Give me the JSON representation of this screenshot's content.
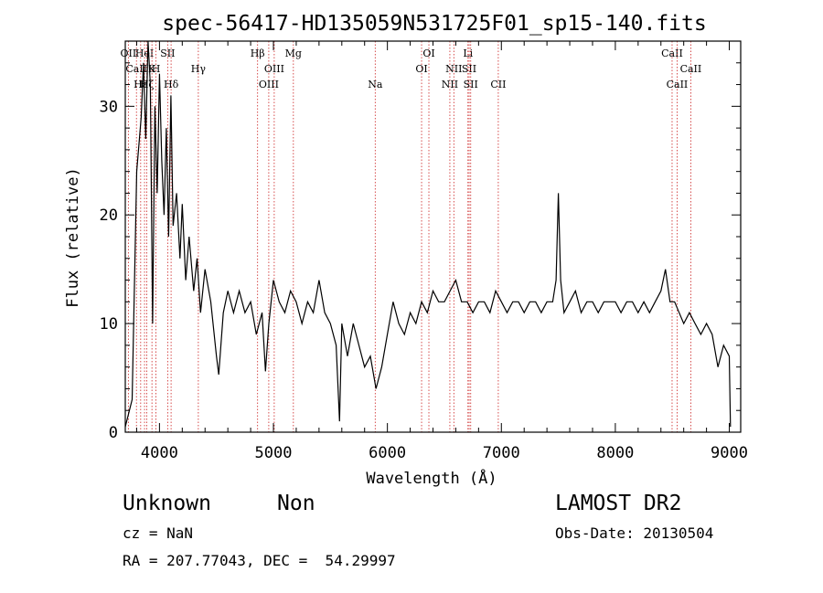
{
  "chart_data": {
    "type": "line",
    "title": "spec-56417-HD135059N531725F01_sp15-140.fits",
    "xlabel": "Wavelength (Å)",
    "ylabel": "Flux (relative)",
    "xlim": [
      3700,
      9100
    ],
    "ylim": [
      0,
      36
    ],
    "xticks": [
      4000,
      5000,
      6000,
      7000,
      8000,
      9000
    ],
    "yticks": [
      0,
      10,
      20,
      30
    ],
    "grid": false,
    "series": [
      {
        "values": [
          [
            3700,
            0.5
          ],
          [
            3760,
            3
          ],
          [
            3800,
            24
          ],
          [
            3840,
            29
          ],
          [
            3860,
            34
          ],
          [
            3880,
            27
          ],
          [
            3900,
            36
          ],
          [
            3920,
            32
          ],
          [
            3940,
            10
          ],
          [
            3960,
            30
          ],
          [
            3980,
            22
          ],
          [
            4000,
            33
          ],
          [
            4020,
            25
          ],
          [
            4040,
            20
          ],
          [
            4060,
            28
          ],
          [
            4080,
            18
          ],
          [
            4100,
            31
          ],
          [
            4120,
            19
          ],
          [
            4150,
            22
          ],
          [
            4180,
            16
          ],
          [
            4200,
            21
          ],
          [
            4230,
            14
          ],
          [
            4260,
            18
          ],
          [
            4300,
            13
          ],
          [
            4330,
            16
          ],
          [
            4360,
            11
          ],
          [
            4400,
            15
          ],
          [
            4450,
            12
          ],
          [
            4500,
            7
          ],
          [
            4520,
            5.3
          ],
          [
            4560,
            11
          ],
          [
            4600,
            13
          ],
          [
            4650,
            11
          ],
          [
            4700,
            13
          ],
          [
            4750,
            11
          ],
          [
            4800,
            12
          ],
          [
            4850,
            9
          ],
          [
            4900,
            11
          ],
          [
            4930,
            5.6
          ],
          [
            4960,
            10
          ],
          [
            5000,
            14
          ],
          [
            5050,
            12
          ],
          [
            5100,
            11
          ],
          [
            5150,
            13
          ],
          [
            5200,
            12
          ],
          [
            5250,
            10
          ],
          [
            5300,
            12
          ],
          [
            5350,
            11
          ],
          [
            5400,
            14
          ],
          [
            5450,
            11
          ],
          [
            5500,
            10
          ],
          [
            5550,
            8
          ],
          [
            5580,
            1
          ],
          [
            5600,
            10
          ],
          [
            5650,
            7
          ],
          [
            5700,
            10
          ],
          [
            5750,
            8
          ],
          [
            5800,
            6
          ],
          [
            5850,
            7
          ],
          [
            5900,
            4
          ],
          [
            5950,
            6
          ],
          [
            6000,
            9
          ],
          [
            6050,
            12
          ],
          [
            6100,
            10
          ],
          [
            6150,
            9
          ],
          [
            6200,
            11
          ],
          [
            6250,
            10
          ],
          [
            6300,
            12
          ],
          [
            6350,
            11
          ],
          [
            6400,
            13
          ],
          [
            6450,
            12
          ],
          [
            6500,
            12
          ],
          [
            6550,
            13
          ],
          [
            6600,
            14
          ],
          [
            6650,
            12
          ],
          [
            6700,
            12
          ],
          [
            6750,
            11
          ],
          [
            6800,
            12
          ],
          [
            6850,
            12
          ],
          [
            6900,
            11
          ],
          [
            6950,
            13
          ],
          [
            7000,
            12
          ],
          [
            7050,
            11
          ],
          [
            7100,
            12
          ],
          [
            7150,
            12
          ],
          [
            7200,
            11
          ],
          [
            7250,
            12
          ],
          [
            7300,
            12
          ],
          [
            7350,
            11
          ],
          [
            7400,
            12
          ],
          [
            7450,
            12
          ],
          [
            7480,
            14
          ],
          [
            7500,
            22
          ],
          [
            7520,
            14
          ],
          [
            7550,
            11
          ],
          [
            7600,
            12
          ],
          [
            7650,
            13
          ],
          [
            7700,
            11
          ],
          [
            7750,
            12
          ],
          [
            7800,
            12
          ],
          [
            7850,
            11
          ],
          [
            7900,
            12
          ],
          [
            7950,
            12
          ],
          [
            8000,
            12
          ],
          [
            8050,
            11
          ],
          [
            8100,
            12
          ],
          [
            8150,
            12
          ],
          [
            8200,
            11
          ],
          [
            8250,
            12
          ],
          [
            8300,
            11
          ],
          [
            8350,
            12
          ],
          [
            8400,
            13
          ],
          [
            8440,
            15
          ],
          [
            8480,
            12
          ],
          [
            8520,
            12
          ],
          [
            8560,
            11
          ],
          [
            8600,
            10
          ],
          [
            8650,
            11
          ],
          [
            8700,
            10
          ],
          [
            8750,
            9
          ],
          [
            8800,
            10
          ],
          [
            8850,
            9
          ],
          [
            8900,
            6
          ],
          [
            8950,
            8
          ],
          [
            9000,
            7
          ],
          [
            9010,
            0.5
          ]
        ]
      }
    ],
    "line_markers": [
      {
        "x": 3727,
        "labels": [
          "OII"
        ],
        "row": 1
      },
      {
        "x": 3798,
        "labels": [
          "CaII"
        ],
        "row": 2
      },
      {
        "x": 3835,
        "labels": [
          "Hε"
        ],
        "row": 3
      },
      {
        "x": 3869,
        "labels": [
          "HeI"
        ],
        "row": 1
      },
      {
        "x": 3889,
        "labels": [
          "Hζ"
        ],
        "row": 3
      },
      {
        "x": 3934,
        "labels": [
          "K"
        ],
        "row": 2
      },
      {
        "x": 3969,
        "labels": [
          "H"
        ],
        "row": 2
      },
      {
        "x": 4072,
        "labels": [
          "SII"
        ],
        "row": 1
      },
      {
        "x": 4102,
        "labels": [
          "Hδ"
        ],
        "row": 3
      },
      {
        "x": 4341,
        "labels": [
          "Hγ"
        ],
        "row": 2
      },
      {
        "x": 4861,
        "labels": [
          "Hβ"
        ],
        "row": 1
      },
      {
        "x": 4959,
        "labels": [
          "OIII"
        ],
        "row": 3
      },
      {
        "x": 5007,
        "labels": [
          "OIII"
        ],
        "row": 2
      },
      {
        "x": 5175,
        "labels": [
          "Mg"
        ],
        "row": 1
      },
      {
        "x": 5893,
        "labels": [
          "Na"
        ],
        "row": 3
      },
      {
        "x": 6300,
        "labels": [
          "OI"
        ],
        "row": 2
      },
      {
        "x": 6364,
        "labels": [
          "OI"
        ],
        "row": 1
      },
      {
        "x": 6548,
        "labels": [
          "NII"
        ],
        "row": 3
      },
      {
        "x": 6583,
        "labels": [
          "NII"
        ],
        "row": 2
      },
      {
        "x": 6707,
        "labels": [
          "Li"
        ],
        "row": 1
      },
      {
        "x": 6717,
        "labels": [
          "SII"
        ],
        "row": 2
      },
      {
        "x": 6731,
        "labels": [
          "SII"
        ],
        "row": 3
      },
      {
        "x": 6973,
        "labels": [
          "CII"
        ],
        "row": 3
      },
      {
        "x": 8498,
        "labels": [
          "CaII"
        ],
        "row": 1
      },
      {
        "x": 8542,
        "labels": [
          "CaII"
        ],
        "row": 3
      },
      {
        "x": 8662,
        "labels": [
          "CaII"
        ],
        "row": 2
      }
    ]
  },
  "info": {
    "class_label": "Unknown",
    "subclass_label": "Non",
    "survey_label": "LAMOST DR2",
    "redshift_text": "cz = NaN",
    "obs_date_text": "Obs-Date: 20130504",
    "coords_text": "RA = 207.77043, DEC =  54.29997"
  }
}
